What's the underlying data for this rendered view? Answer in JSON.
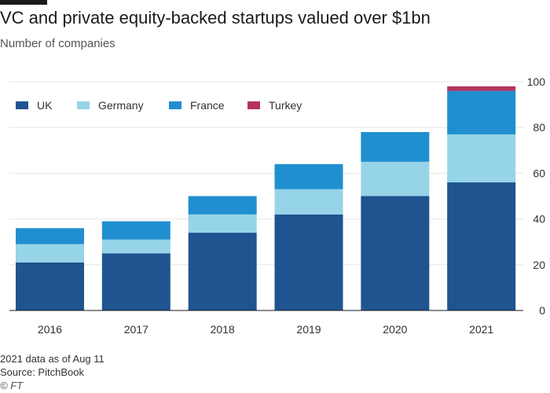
{
  "title": "VC and private equity-backed startups valued over $1bn",
  "subtitle": "Number of companies",
  "footer": {
    "note": "2021 data as of Aug 11",
    "source": "Source: PitchBook",
    "credit": "© FT"
  },
  "colors": {
    "UK": "#1f5490",
    "Germany": "#96d4e8",
    "France": "#1f8fcf",
    "Turkey": "#b3325f",
    "grid": "#e6e6e6",
    "axis": "#1a1a1a"
  },
  "chart_data": {
    "type": "bar",
    "stacked": true,
    "categories": [
      "2016",
      "2017",
      "2018",
      "2019",
      "2020",
      "2021"
    ],
    "series": [
      {
        "name": "UK",
        "values": [
          21,
          25,
          34,
          42,
          50,
          56
        ]
      },
      {
        "name": "Germany",
        "values": [
          8,
          6,
          8,
          11,
          15,
          21
        ]
      },
      {
        "name": "France",
        "values": [
          7,
          8,
          8,
          11,
          13,
          19
        ]
      },
      {
        "name": "Turkey",
        "values": [
          0,
          0,
          0,
          0,
          0,
          2
        ]
      }
    ],
    "ylim": [
      0,
      100
    ],
    "yticks": [
      "0",
      "20",
      "40",
      "60",
      "80",
      "100"
    ],
    "y_axis_side": "right",
    "grid": true,
    "legend_position": "top-left"
  }
}
